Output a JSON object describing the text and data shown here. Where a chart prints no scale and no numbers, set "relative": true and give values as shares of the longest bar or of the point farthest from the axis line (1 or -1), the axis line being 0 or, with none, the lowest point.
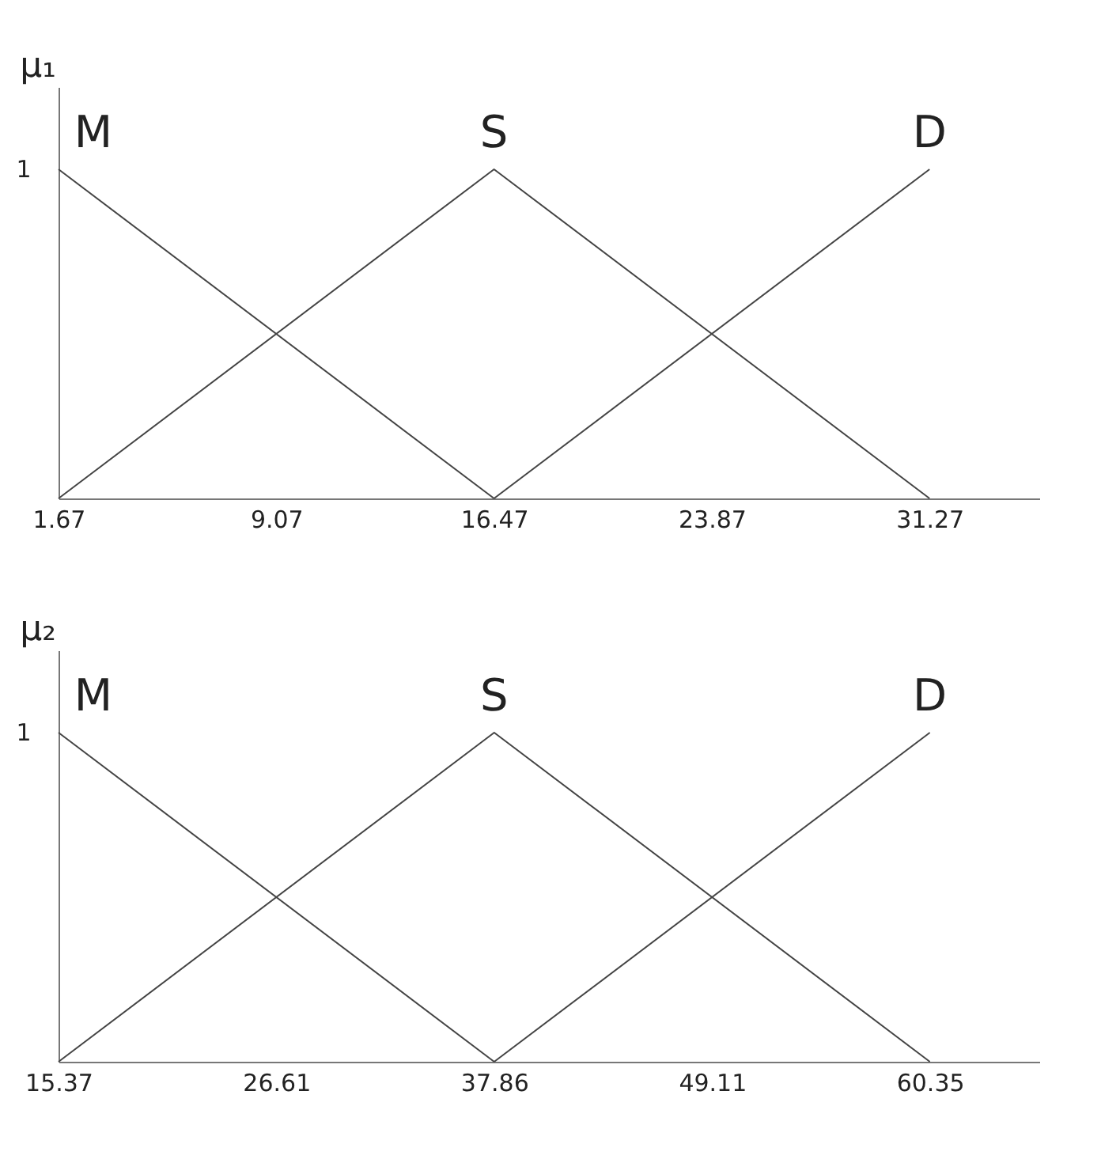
{
  "chart_data": [
    {
      "type": "line",
      "ylabel": "μ₁",
      "relative": true,
      "annotations": [
        "1"
      ],
      "xlim": [
        1.67,
        35
      ],
      "xticks": [
        1.67,
        9.07,
        16.47,
        23.87,
        31.27
      ],
      "grid": false,
      "legend": false,
      "marker": "none",
      "line_style": "solid",
      "series": [
        {
          "name": "M",
          "color": "#444444",
          "x": [
            1.67,
            16.47
          ],
          "values": [
            1,
            0
          ]
        },
        {
          "name": "S",
          "color": "#444444",
          "x": [
            1.67,
            16.47,
            31.27
          ],
          "values": [
            0,
            1,
            0
          ]
        },
        {
          "name": "D",
          "color": "#444444",
          "x": [
            16.47,
            31.27
          ],
          "values": [
            0,
            1
          ]
        }
      ]
    },
    {
      "type": "line",
      "ylabel": "μ₂",
      "relative": true,
      "annotations": [
        "1"
      ],
      "xlim": [
        15.37,
        66
      ],
      "xticks": [
        15.37,
        26.61,
        37.86,
        49.11,
        60.35
      ],
      "grid": false,
      "legend": false,
      "marker": "none",
      "line_style": "solid",
      "series": [
        {
          "name": "M",
          "color": "#444444",
          "x": [
            15.37,
            37.86
          ],
          "values": [
            1,
            0
          ]
        },
        {
          "name": "S",
          "color": "#444444",
          "x": [
            15.37,
            37.86,
            60.35
          ],
          "values": [
            0,
            1,
            0
          ]
        },
        {
          "name": "D",
          "color": "#444444",
          "x": [
            37.86,
            60.35
          ],
          "values": [
            0,
            1
          ]
        }
      ]
    }
  ]
}
